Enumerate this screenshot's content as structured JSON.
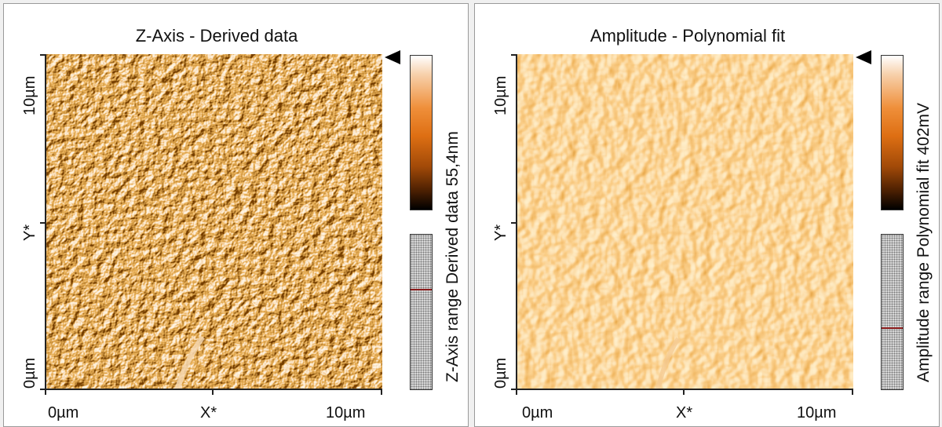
{
  "panels": [
    {
      "title": "Z-Axis - Derived data",
      "side_label": "Z-Axis range Derived data 55,4nm",
      "y_axis": {
        "label": "Y*",
        "tick_top": "10µm",
        "tick_bottom": "0µm"
      },
      "x_axis": {
        "label": "X*",
        "tick_left": "0µm",
        "tick_right": "10µm"
      },
      "range_marker_fraction": 0.35
    },
    {
      "title": "Amplitude - Polynomial fit",
      "side_label": "Amplitude range Polynomial fit 402mV",
      "y_axis": {
        "label": "Y*",
        "tick_top": "10µm",
        "tick_bottom": "0µm"
      },
      "x_axis": {
        "label": "X*",
        "tick_left": "0µm",
        "tick_right": "10µm"
      },
      "range_marker_fraction": 0.6
    }
  ],
  "colors": {
    "colormap_light": "#ffffff",
    "colormap_mid": "#de6f13",
    "colormap_dark": "#000000",
    "range_marker": "#8b1a1a"
  }
}
